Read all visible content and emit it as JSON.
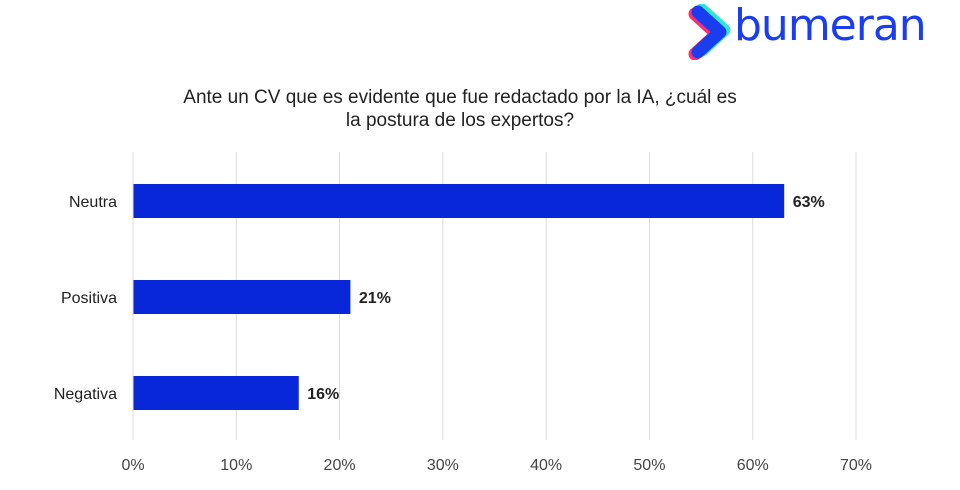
{
  "logo": {
    "text": "bumeran",
    "colors": {
      "primary": "#1a3df0",
      "accent_pink": "#ff2e6e",
      "accent_teal": "#2ee6d6"
    }
  },
  "chart_data": {
    "type": "bar",
    "orientation": "horizontal",
    "title": "Ante un CV que es evidente que fue redactado por la IA, ¿cuál es la postura de los expertos?",
    "title_lines": [
      "Ante un CV que es evidente que fue redactado por la IA, ¿cuál es",
      "la postura de los expertos?"
    ],
    "categories": [
      "Neutra",
      "Positiva",
      "Negativa"
    ],
    "values": [
      63,
      21,
      16
    ],
    "value_labels": [
      "63%",
      "21%",
      "16%"
    ],
    "xlabel": "",
    "ylabel": "",
    "xlim": [
      0,
      70
    ],
    "xticks": [
      0,
      10,
      20,
      30,
      40,
      50,
      60,
      70
    ],
    "xtick_labels": [
      "0%",
      "10%",
      "20%",
      "30%",
      "40%",
      "50%",
      "60%",
      "70%"
    ],
    "grid": true,
    "bar_color": "#0827d9",
    "grid_color": "#dddddd"
  }
}
